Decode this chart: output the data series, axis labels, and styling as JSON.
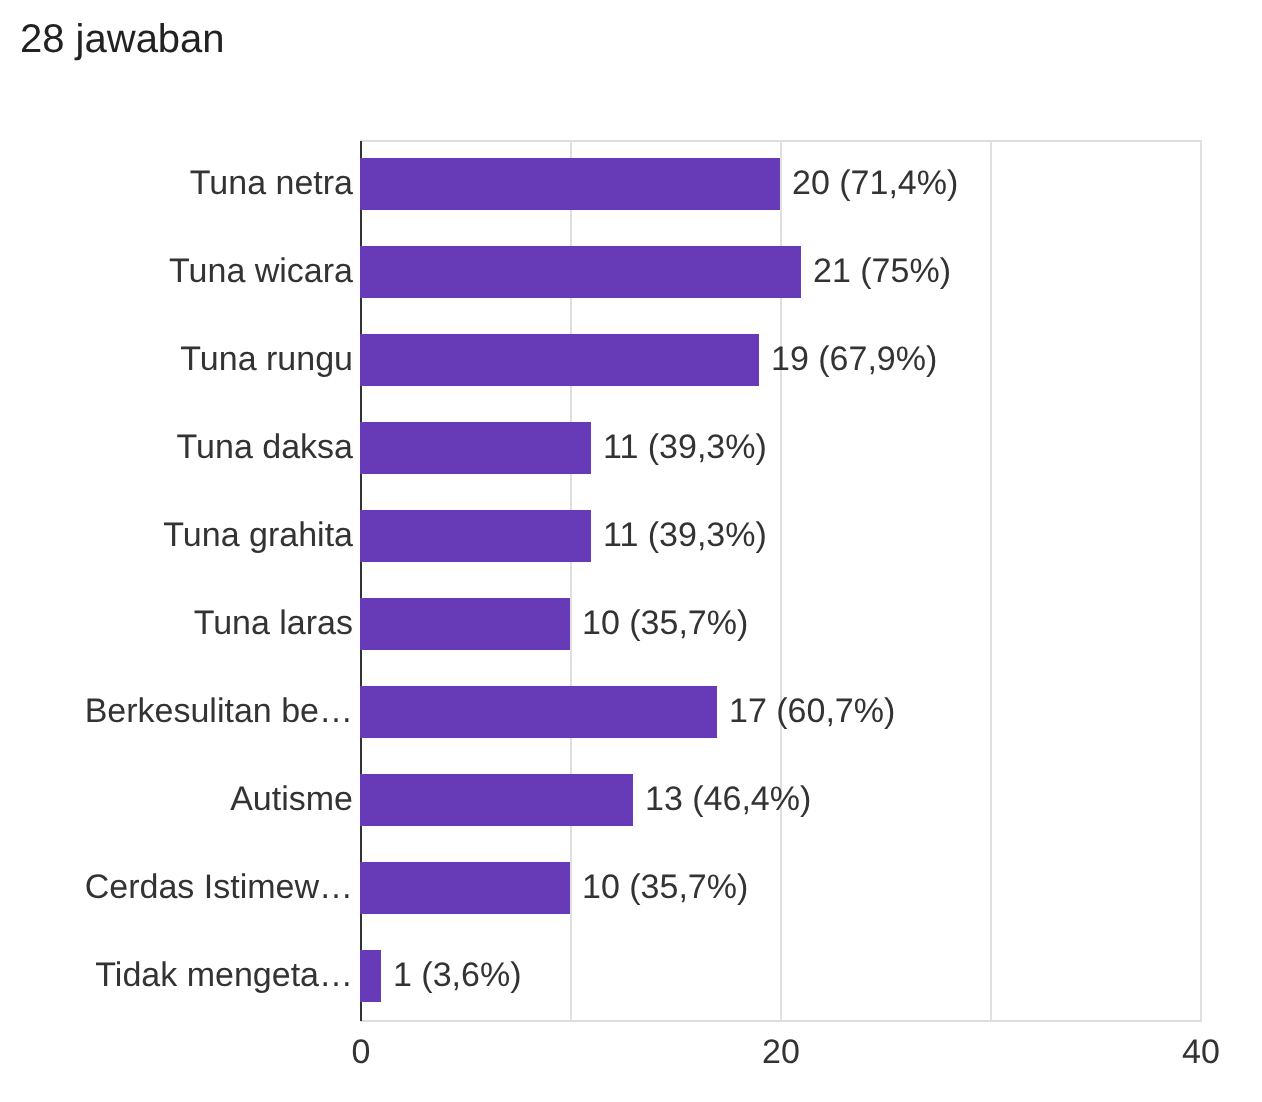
{
  "chart_data": {
    "type": "bar",
    "orientation": "horizontal",
    "title": "28 jawaban",
    "categories": [
      "Tuna netra",
      "Tuna wicara",
      "Tuna rungu",
      "Tuna daksa",
      "Tuna grahita",
      "Tuna laras",
      "Berkesulitan be…",
      "Autisme",
      "Cerdas Istimew…",
      "Tidak mengeta…"
    ],
    "values": [
      20,
      21,
      19,
      11,
      11,
      10,
      17,
      13,
      10,
      1
    ],
    "value_labels": [
      "20 (71,4%)",
      "21 (75%)",
      "19 (67,9%)",
      "11 (39,3%)",
      "11 (39,3%)",
      "10 (35,7%)",
      "17 (60,7%)",
      "13 (46,4%)",
      "10 (35,7%)",
      "1 (3,6%)"
    ],
    "color": "#673ab7",
    "xlim": [
      0,
      40
    ],
    "xticks": [
      0,
      {
        "value": 10,
        "label": null
      },
      20,
      {
        "value": 30,
        "label": null
      },
      40
    ],
    "grid": "x"
  }
}
